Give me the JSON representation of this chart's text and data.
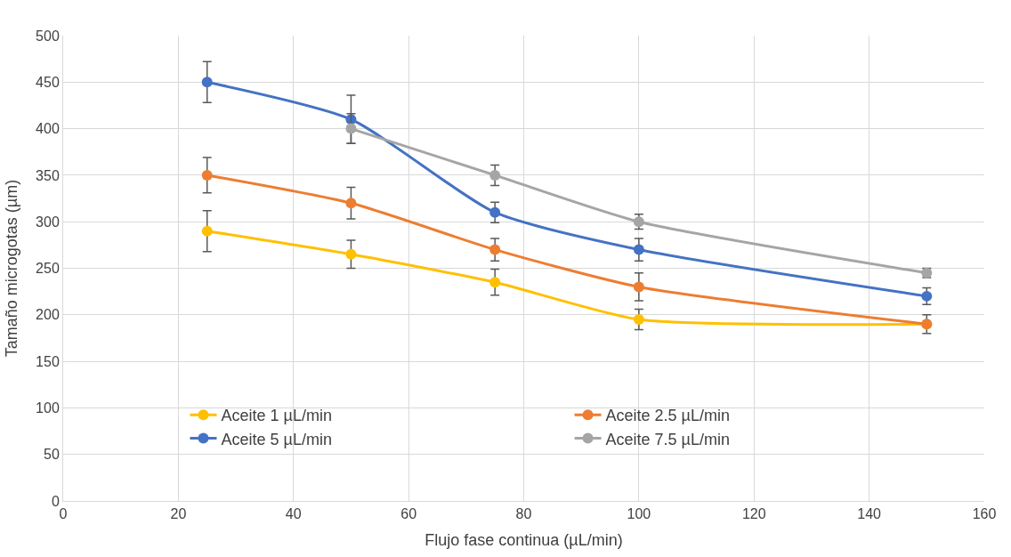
{
  "chart_data": {
    "type": "line",
    "xlabel": "Flujo fase continua (µL/min)",
    "ylabel": "Tamaño microgotas (µm)",
    "xlim": [
      0,
      160
    ],
    "xticks": [
      0,
      20,
      40,
      60,
      80,
      100,
      120,
      140,
      160
    ],
    "ylim": [
      0,
      500
    ],
    "yticks": [
      0,
      50,
      100,
      150,
      200,
      250,
      300,
      350,
      400,
      450,
      500
    ],
    "grid": true,
    "legend": "bottom",
    "marker": "circle",
    "line_style": "solid",
    "series": [
      {
        "name": "Aceite 1 µL/min",
        "color": "#ffc000",
        "x": [
          25,
          50,
          75,
          100,
          150
        ],
        "values": [
          290,
          265,
          235,
          195,
          190
        ],
        "errors": [
          22,
          15,
          14,
          11,
          null
        ]
      },
      {
        "name": "Aceite 2.5 µL/min",
        "color": "#ed7d31",
        "x": [
          25,
          50,
          75,
          100,
          150
        ],
        "values": [
          350,
          320,
          270,
          230,
          190
        ],
        "errors": [
          19,
          17,
          12,
          15,
          10
        ]
      },
      {
        "name": "Aceite 5 µL/min",
        "color": "#4472c4",
        "x": [
          25,
          50,
          75,
          100,
          150
        ],
        "values": [
          450,
          410,
          310,
          270,
          220
        ],
        "errors": [
          22,
          26,
          11,
          12,
          9
        ]
      },
      {
        "name": "Aceite 7.5 µL/min",
        "color": "#a5a5a5",
        "x": [
          50,
          75,
          100,
          150
        ],
        "values": [
          400,
          350,
          300,
          245
        ],
        "errors": [
          16,
          11,
          8,
          5
        ]
      }
    ]
  }
}
